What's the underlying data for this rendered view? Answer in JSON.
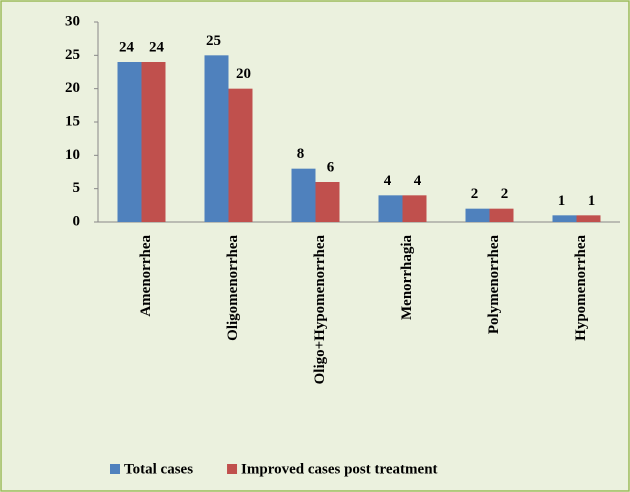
{
  "chart_data": {
    "type": "bar",
    "categories": [
      "Amenorrhea",
      "Oligomenorrhea",
      "Oligo+Hypomenorrhea",
      "Menorrhagia",
      "Polymenorrhea",
      "Hypomenorrhea"
    ],
    "series": [
      {
        "name": "Total cases",
        "color": "#4f81bd",
        "values": [
          24,
          25,
          8,
          4,
          2,
          1
        ]
      },
      {
        "name": "Improved cases post treatment",
        "color": "#c0504d",
        "values": [
          24,
          20,
          6,
          4,
          2,
          1
        ]
      }
    ],
    "ylim": [
      0,
      30
    ],
    "yticks": [
      0,
      5,
      10,
      15,
      20,
      25,
      30
    ],
    "grid": false,
    "legend": "bottom"
  }
}
